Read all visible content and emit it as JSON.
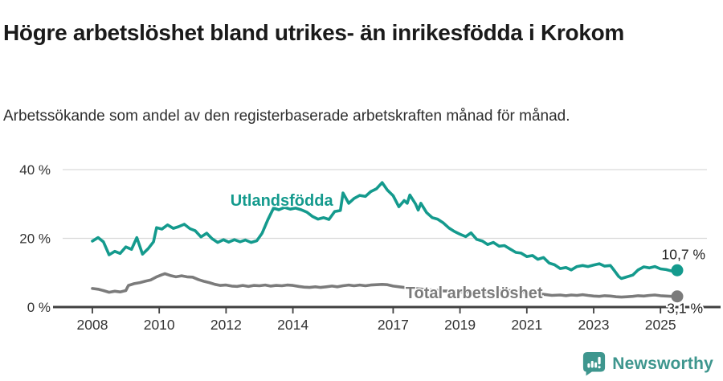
{
  "header": {
    "title": "Högre arbetslöshet bland utrikes- än inrikesfödda i Krokom",
    "subtitle": "Arbetssökande som andel av den registerbaserade arbetskraften månad för månad."
  },
  "chart_data": {
    "type": "line",
    "title": "Högre arbetslöshet bland utrikes- än inrikesfödda i Krokom",
    "subtitle": "Arbetssökande som andel av den registerbaserade arbetskraften månad för månad.",
    "unit": "%",
    "xlabel": "",
    "ylabel": "",
    "ylim": [
      0,
      45
    ],
    "x_range": [
      2008,
      2025.5
    ],
    "grid": "horizontal-only",
    "y_ticks": [
      {
        "value": 0,
        "label": "0 %"
      },
      {
        "value": 20,
        "label": "20 %"
      },
      {
        "value": 40,
        "label": "40 %"
      }
    ],
    "x_ticks": [
      {
        "value": 2008,
        "label": "2008"
      },
      {
        "value": 2010,
        "label": "2010"
      },
      {
        "value": 2012,
        "label": "2012"
      },
      {
        "value": 2014,
        "label": "2014"
      },
      {
        "value": 2017,
        "label": "2017"
      },
      {
        "value": 2019,
        "label": "2019"
      },
      {
        "value": 2021,
        "label": "2021"
      },
      {
        "value": 2023,
        "label": "2023"
      },
      {
        "value": 2025,
        "label": "2025"
      }
    ],
    "colors": {
      "axis": "#404040",
      "grid": "#d9d9d9",
      "tick_text": "#333333",
      "end_label_text": "#222222"
    },
    "series": [
      {
        "id": "utlandsfodda",
        "name": "Utlandsfödda",
        "color": "#149a8d",
        "end_label": "10,7 %",
        "end_value": 10.7,
        "end_label_position": "above",
        "label_anchor": {
          "x": 2012.13,
          "y": 29.5
        },
        "points": [
          [
            2008.0,
            19.2
          ],
          [
            2008.17,
            20.2
          ],
          [
            2008.33,
            19.0
          ],
          [
            2008.5,
            15.2
          ],
          [
            2008.67,
            16.2
          ],
          [
            2008.83,
            15.6
          ],
          [
            2009.0,
            17.5
          ],
          [
            2009.17,
            16.8
          ],
          [
            2009.33,
            20.2
          ],
          [
            2009.5,
            15.4
          ],
          [
            2009.67,
            17.0
          ],
          [
            2009.83,
            19.0
          ],
          [
            2009.92,
            23.1
          ],
          [
            2010.08,
            22.7
          ],
          [
            2010.25,
            23.9
          ],
          [
            2010.42,
            22.9
          ],
          [
            2010.58,
            23.4
          ],
          [
            2010.75,
            24.1
          ],
          [
            2010.92,
            22.8
          ],
          [
            2011.08,
            22.2
          ],
          [
            2011.25,
            20.4
          ],
          [
            2011.42,
            21.5
          ],
          [
            2011.58,
            19.9
          ],
          [
            2011.75,
            18.8
          ],
          [
            2011.92,
            19.6
          ],
          [
            2012.08,
            18.9
          ],
          [
            2012.25,
            19.6
          ],
          [
            2012.42,
            19.0
          ],
          [
            2012.58,
            19.5
          ],
          [
            2012.75,
            18.8
          ],
          [
            2012.92,
            19.3
          ],
          [
            2013.08,
            21.5
          ],
          [
            2013.25,
            25.4
          ],
          [
            2013.42,
            28.8
          ],
          [
            2013.58,
            28.3
          ],
          [
            2013.75,
            29.0
          ],
          [
            2013.92,
            28.5
          ],
          [
            2014.08,
            28.8
          ],
          [
            2014.25,
            28.3
          ],
          [
            2014.42,
            27.6
          ],
          [
            2014.58,
            26.4
          ],
          [
            2014.75,
            25.6
          ],
          [
            2014.92,
            26.0
          ],
          [
            2015.08,
            25.5
          ],
          [
            2015.25,
            27.8
          ],
          [
            2015.42,
            28.1
          ],
          [
            2015.5,
            33.2
          ],
          [
            2015.67,
            30.2
          ],
          [
            2015.83,
            31.6
          ],
          [
            2016.0,
            32.5
          ],
          [
            2016.17,
            32.2
          ],
          [
            2016.33,
            33.6
          ],
          [
            2016.5,
            34.4
          ],
          [
            2016.67,
            36.2
          ],
          [
            2016.83,
            34.0
          ],
          [
            2017.0,
            32.4
          ],
          [
            2017.17,
            29.2
          ],
          [
            2017.33,
            31.0
          ],
          [
            2017.42,
            30.2
          ],
          [
            2017.5,
            32.6
          ],
          [
            2017.67,
            30.0
          ],
          [
            2017.75,
            28.2
          ],
          [
            2017.83,
            30.2
          ],
          [
            2018.0,
            27.5
          ],
          [
            2018.17,
            26.0
          ],
          [
            2018.33,
            25.6
          ],
          [
            2018.5,
            24.5
          ],
          [
            2018.67,
            23.0
          ],
          [
            2018.83,
            22.0
          ],
          [
            2019.0,
            21.2
          ],
          [
            2019.17,
            20.5
          ],
          [
            2019.33,
            21.6
          ],
          [
            2019.5,
            19.7
          ],
          [
            2019.67,
            19.2
          ],
          [
            2019.83,
            18.2
          ],
          [
            2020.0,
            18.8
          ],
          [
            2020.17,
            17.7
          ],
          [
            2020.33,
            17.9
          ],
          [
            2020.5,
            16.9
          ],
          [
            2020.67,
            15.9
          ],
          [
            2020.83,
            15.7
          ],
          [
            2021.0,
            14.7
          ],
          [
            2021.17,
            15.0
          ],
          [
            2021.33,
            13.9
          ],
          [
            2021.5,
            14.4
          ],
          [
            2021.67,
            12.8
          ],
          [
            2021.83,
            12.3
          ],
          [
            2022.0,
            11.2
          ],
          [
            2022.17,
            11.5
          ],
          [
            2022.33,
            10.8
          ],
          [
            2022.5,
            11.8
          ],
          [
            2022.67,
            12.1
          ],
          [
            2022.83,
            11.8
          ],
          [
            2023.0,
            12.2
          ],
          [
            2023.17,
            12.6
          ],
          [
            2023.33,
            11.9
          ],
          [
            2023.5,
            12.1
          ],
          [
            2023.58,
            11.1
          ],
          [
            2023.75,
            8.9
          ],
          [
            2023.83,
            8.3
          ],
          [
            2024.0,
            8.8
          ],
          [
            2024.17,
            9.3
          ],
          [
            2024.33,
            10.8
          ],
          [
            2024.5,
            11.7
          ],
          [
            2024.67,
            11.4
          ],
          [
            2024.83,
            11.8
          ],
          [
            2025.0,
            11.1
          ],
          [
            2025.17,
            10.9
          ],
          [
            2025.33,
            10.5
          ],
          [
            2025.5,
            10.7
          ]
        ]
      },
      {
        "id": "total-arbetsloshet",
        "name": "Total arbetslöshet",
        "color": "#7b7b7b",
        "end_label": "3,1 %",
        "end_value": 3.1,
        "end_label_position": "below",
        "label_anchor": {
          "x": 2017.37,
          "y": 2.6
        },
        "points": [
          [
            2008.0,
            5.4
          ],
          [
            2008.17,
            5.2
          ],
          [
            2008.33,
            4.8
          ],
          [
            2008.5,
            4.3
          ],
          [
            2008.67,
            4.6
          ],
          [
            2008.83,
            4.4
          ],
          [
            2009.0,
            4.8
          ],
          [
            2009.08,
            6.3
          ],
          [
            2009.25,
            6.8
          ],
          [
            2009.42,
            7.1
          ],
          [
            2009.58,
            7.5
          ],
          [
            2009.75,
            7.9
          ],
          [
            2009.92,
            8.8
          ],
          [
            2010.08,
            9.4
          ],
          [
            2010.17,
            9.7
          ],
          [
            2010.33,
            9.2
          ],
          [
            2010.5,
            8.8
          ],
          [
            2010.67,
            9.1
          ],
          [
            2010.83,
            8.8
          ],
          [
            2011.0,
            8.7
          ],
          [
            2011.17,
            8.0
          ],
          [
            2011.33,
            7.5
          ],
          [
            2011.5,
            7.1
          ],
          [
            2011.67,
            6.6
          ],
          [
            2011.83,
            6.3
          ],
          [
            2012.0,
            6.4
          ],
          [
            2012.17,
            6.1
          ],
          [
            2012.33,
            6.0
          ],
          [
            2012.5,
            6.3
          ],
          [
            2012.67,
            6.0
          ],
          [
            2012.83,
            6.3
          ],
          [
            2013.0,
            6.2
          ],
          [
            2013.17,
            6.4
          ],
          [
            2013.33,
            6.1
          ],
          [
            2013.5,
            6.3
          ],
          [
            2013.67,
            6.2
          ],
          [
            2013.83,
            6.4
          ],
          [
            2014.0,
            6.3
          ],
          [
            2014.17,
            6.0
          ],
          [
            2014.33,
            5.8
          ],
          [
            2014.5,
            5.7
          ],
          [
            2014.67,
            5.9
          ],
          [
            2014.83,
            5.7
          ],
          [
            2015.0,
            5.9
          ],
          [
            2015.17,
            6.1
          ],
          [
            2015.33,
            5.9
          ],
          [
            2015.5,
            6.2
          ],
          [
            2015.67,
            6.4
          ],
          [
            2015.83,
            6.2
          ],
          [
            2016.0,
            6.4
          ],
          [
            2016.17,
            6.2
          ],
          [
            2016.33,
            6.4
          ],
          [
            2016.5,
            6.5
          ],
          [
            2016.67,
            6.6
          ],
          [
            2016.83,
            6.5
          ],
          [
            2017.0,
            6.1
          ],
          [
            2017.25,
            5.8
          ],
          [
            2017.5,
            5.5
          ],
          [
            2017.75,
            5.3
          ],
          [
            2018.0,
            5.1
          ],
          [
            2018.25,
            4.9
          ],
          [
            2018.5,
            4.7
          ],
          [
            2018.75,
            4.6
          ],
          [
            2019.0,
            4.5
          ],
          [
            2019.25,
            4.4
          ],
          [
            2019.5,
            4.4
          ],
          [
            2019.75,
            4.3
          ],
          [
            2020.0,
            4.4
          ],
          [
            2020.25,
            4.7
          ],
          [
            2020.5,
            4.8
          ],
          [
            2020.75,
            4.6
          ],
          [
            2021.0,
            4.3
          ],
          [
            2021.25,
            4.0
          ],
          [
            2021.5,
            3.7
          ],
          [
            2021.75,
            3.4
          ],
          [
            2022.0,
            3.5
          ],
          [
            2022.17,
            3.3
          ],
          [
            2022.33,
            3.5
          ],
          [
            2022.5,
            3.4
          ],
          [
            2022.67,
            3.6
          ],
          [
            2022.83,
            3.4
          ],
          [
            2023.0,
            3.2
          ],
          [
            2023.17,
            3.1
          ],
          [
            2023.33,
            3.3
          ],
          [
            2023.5,
            3.2
          ],
          [
            2023.67,
            3.0
          ],
          [
            2023.83,
            2.9
          ],
          [
            2024.0,
            3.0
          ],
          [
            2024.17,
            3.1
          ],
          [
            2024.33,
            3.3
          ],
          [
            2024.5,
            3.2
          ],
          [
            2024.67,
            3.4
          ],
          [
            2024.83,
            3.5
          ],
          [
            2025.0,
            3.3
          ],
          [
            2025.17,
            3.2
          ],
          [
            2025.33,
            3.1
          ],
          [
            2025.5,
            3.1
          ]
        ]
      }
    ]
  },
  "footer": {
    "brand": "Newsworthy",
    "brand_color": "#3e968e",
    "logo_icon": "bar-chart-speech-bubble-icon"
  }
}
